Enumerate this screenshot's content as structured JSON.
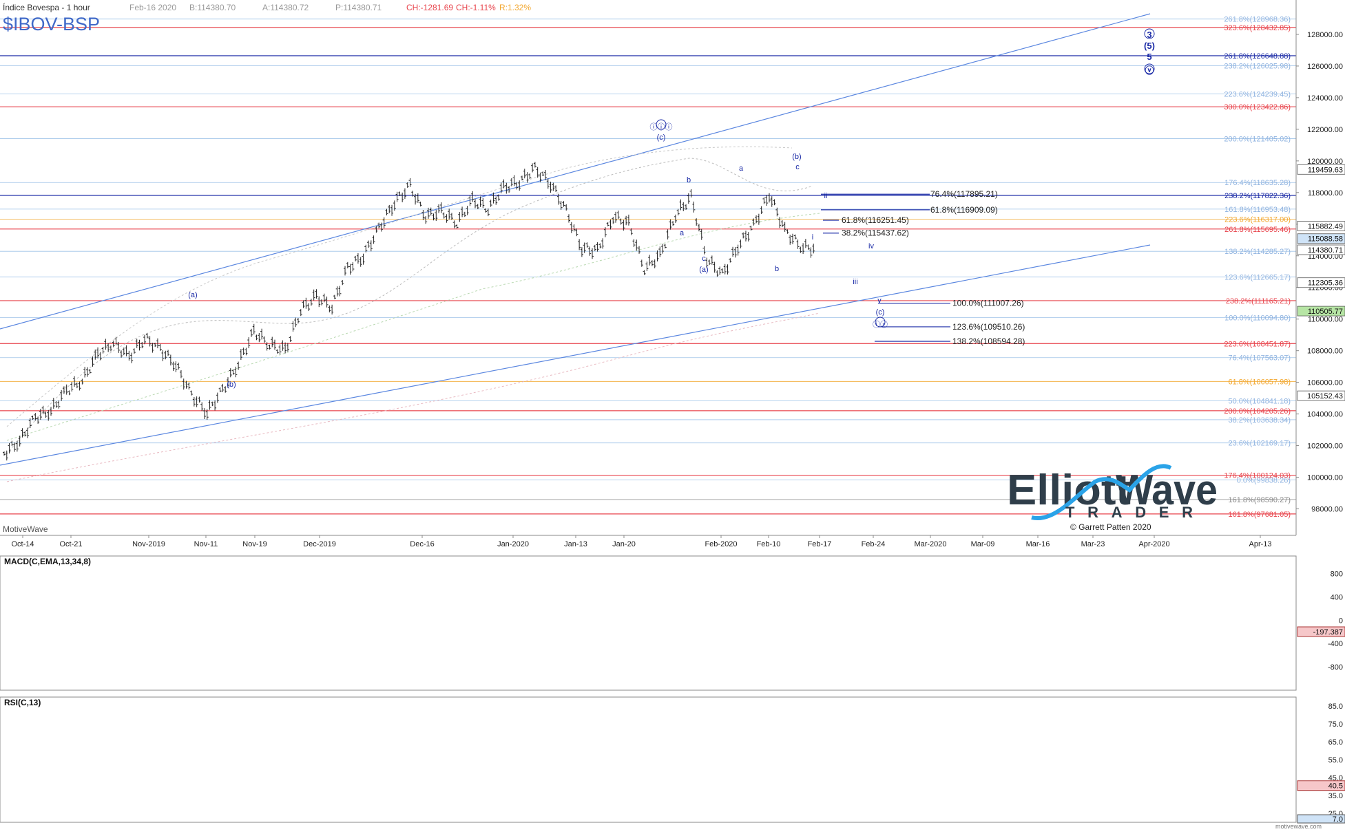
{
  "header": {
    "title": "Índice Bovespa - 1 hour",
    "date": "Feb-16 2020",
    "bid": "B:114380.70",
    "ask": "A:114380.72",
    "price": "P:114380.71",
    "change": "CH:-1281.69",
    "change_pct": "CH:-1.11%",
    "range": "R:1.32%",
    "symbol": "$IBOV-BSP",
    "source_label": "MotiveWave",
    "watermark": "motivewave.com"
  },
  "logo": {
    "line1": "Elliott",
    "line2": "Wave",
    "sub": "TRADER",
    "copyright": "© Garrett Patten 2020"
  },
  "colors": {
    "red": "#e8434b",
    "navy": "#1a2aa6",
    "light_blue": "#8fb3e0",
    "orange": "#f2a62c",
    "blue_line": "#5b87e0"
  },
  "chart_data": [
    {
      "type": "line",
      "title": "",
      "note": "Price chart (OHLC bars approximated by close-price path)",
      "ylim": [
        96500,
        130000
      ],
      "y_ticks": [
        "128000.00",
        "126000.00",
        "124000.00",
        "122000.00",
        "120000.00",
        "118000.00",
        "116000.00",
        "114000.00",
        "112000.00",
        "110000.00",
        "108000.00",
        "106000.00",
        "104000.00",
        "102000.00",
        "100000.00",
        "98000.00"
      ],
      "x_ticks": [
        "Oct-14",
        "Oct-21",
        "Nov-2019",
        "Nov-11",
        "Nov-19",
        "Dec-2019",
        "Dec-16",
        "Jan-2020",
        "Jan-13",
        "Jan-20",
        "Feb-2020",
        "Feb-10",
        "Feb-17",
        "Feb-24",
        "Mar-2020",
        "Mar-09",
        "Mar-16",
        "Mar-23",
        "Apr-2020",
        "Apr-13"
      ],
      "series": [
        {
          "values": [
            101500,
            102300,
            103800,
            104200,
            105500,
            106100,
            107800,
            108500,
            107600,
            108800,
            108100,
            107100,
            105200,
            104100,
            105500,
            107200,
            109200,
            108400,
            108000,
            110600,
            111400,
            110800,
            113200,
            114000,
            115700,
            117400,
            118400,
            116500,
            116800,
            116100,
            117500,
            117000,
            118300,
            118700,
            119500,
            118600,
            116800,
            114500,
            114300,
            116500,
            116000,
            113200,
            114000,
            116600,
            117700,
            113800,
            112800,
            114600,
            115900,
            117900,
            115600,
            114600,
            114400
          ]
        }
      ],
      "levels": [
        {
          "label": "261.8%(128968.36)",
          "value": 128968.36,
          "color": "light"
        },
        {
          "label": "323.6%(128432.85)",
          "value": 128432.85,
          "color": "red"
        },
        {
          "label": "261.8%(126648.88)",
          "value": 126648.88,
          "color": "navy"
        },
        {
          "label": "238.2%(126025.98)",
          "value": 126025.98,
          "color": "light"
        },
        {
          "label": "223.6%(124239.45)",
          "value": 124239.45,
          "color": "light"
        },
        {
          "label": "300.0%(123422.86)",
          "value": 123422.86,
          "color": "red"
        },
        {
          "label": "200.0%(121405.02)",
          "value": 121405.02,
          "color": "light"
        },
        {
          "label": "176.4%(118635.28)",
          "value": 118635.28,
          "color": "light"
        },
        {
          "label": "238.2%(117822.36)",
          "value": 117822.36,
          "color": "navy"
        },
        {
          "label": "161.8%(116953.48)",
          "value": 116953.48,
          "color": "light"
        },
        {
          "label": "223.6%(116317.00)",
          "value": 116317.0,
          "color": "orange"
        },
        {
          "label": "261.8%(115695.46)",
          "value": 115695.46,
          "color": "red"
        },
        {
          "label": "138.2%(114285.27)",
          "value": 114285.27,
          "color": "light"
        },
        {
          "label": "123.6%(112665.17)",
          "value": 112665.17,
          "color": "light"
        },
        {
          "label": "238.2%(111165.21)",
          "value": 111165.21,
          "color": "red"
        },
        {
          "label": "100.0%(110094.80)",
          "value": 110094.8,
          "color": "light"
        },
        {
          "label": "223.6%(108451.87)",
          "value": 108451.87,
          "color": "red"
        },
        {
          "label": "76.4%(107563.07)",
          "value": 107563.07,
          "color": "light"
        },
        {
          "label": "61.8%(106057.98)",
          "value": 106057.98,
          "color": "orange"
        },
        {
          "label": "50.0%(104841.18)",
          "value": 104841.18,
          "color": "light"
        },
        {
          "label": "200.0%(104205.26)",
          "value": 104205.26,
          "color": "red"
        },
        {
          "label": "38.2%(103638.34)",
          "value": 103638.34,
          "color": "light"
        },
        {
          "label": "23.6%(102169.17)",
          "value": 102169.17,
          "color": "light"
        },
        {
          "label": "176.4%(100124.03)",
          "value": 100124.03,
          "color": "red"
        },
        {
          "label": "0.0%(99838.26)",
          "value": 99838.26,
          "color": "light"
        },
        {
          "label": "161.8%(98590.27)",
          "value": 98590.27,
          "color": "gray"
        },
        {
          "label": "161.8%(97681.05)",
          "value": 97681.05,
          "color": "red"
        }
      ],
      "right_markers": [
        {
          "label": "119459.63",
          "value": 119459.63,
          "color": "white"
        },
        {
          "label": "115882.49",
          "value": 115882.49,
          "color": "white"
        },
        {
          "label": "115088.58",
          "value": 115088.58,
          "color": "lightblue"
        },
        {
          "label": "114380.71",
          "value": 114380.71,
          "color": "white"
        },
        {
          "label": "112305.36",
          "value": 112305.36,
          "color": "white"
        },
        {
          "label": "110505.77",
          "value": 110505.77,
          "color": "green"
        },
        {
          "label": "105152.43",
          "value": 105152.43,
          "color": "white"
        }
      ],
      "projections": [
        {
          "label": "76.4%(117895.21)",
          "value": 117895.21
        },
        {
          "label": "61.8%(116909.09)",
          "value": 116909.09
        },
        {
          "label": "61.8%(116251.45)",
          "value": 116251.45
        },
        {
          "label": "38.2%(115437.62)",
          "value": 115437.62
        },
        {
          "label": "100.0%(111007.26)",
          "value": 111007.26
        },
        {
          "label": "123.6%(109510.26)",
          "value": 109510.26
        },
        {
          "label": "138.2%(108594.28)",
          "value": 108594.28
        }
      ],
      "wave_labels": [
        "(a)",
        "(b)",
        "ⓘⓘⓘ",
        "(c)",
        "a",
        "b",
        "c",
        "(a)",
        "a",
        "b",
        "(b)",
        "c",
        "ii",
        "i",
        "iv",
        "iii",
        "v",
        "(c)",
        "ⓘⓥ",
        "3",
        "(5)",
        "5",
        "ⓥ"
      ]
    },
    {
      "type": "line",
      "title": "MACD(C,EMA,13,34,8)",
      "ylim": [
        -1200,
        1100
      ],
      "y_ticks": [
        "800",
        "400",
        "0",
        "-400",
        "-800"
      ],
      "value_marker": "-197.387"
    },
    {
      "type": "line",
      "title": "RSI(C,13)",
      "ylim": [
        20,
        90
      ],
      "y_ticks": [
        "85.0",
        "75.0",
        "65.0",
        "55.0",
        "45.0",
        "35.0",
        "25.0"
      ],
      "value_marker": "40.5",
      "extra_marker": "7.0"
    }
  ]
}
